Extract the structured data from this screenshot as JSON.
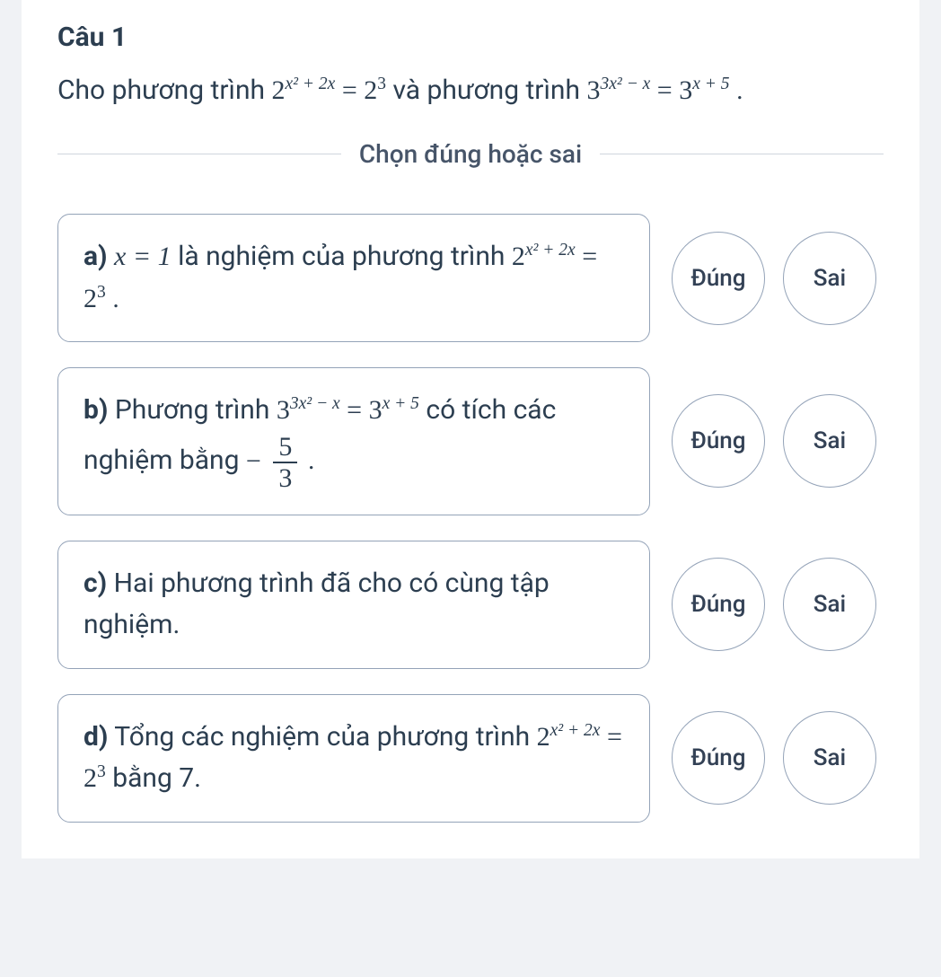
{
  "question": {
    "title": "Câu 1",
    "body_pre": "Cho phương trình ",
    "eq1_base": "2",
    "eq1_exp": "x² + 2x",
    "eq1_eq": " = ",
    "eq1_rhs_base": "2",
    "eq1_rhs_exp": "3",
    "body_mid": " và phương trình ",
    "eq2_base": "3",
    "eq2_exp": "3x² − x",
    "eq2_eq": " = ",
    "eq2_rhs_base": "3",
    "eq2_rhs_exp": "x + 5",
    "body_end": "."
  },
  "divider": "Chọn đúng hoặc sai",
  "buttons": {
    "true": "Đúng",
    "false": "Sai"
  },
  "options": {
    "a": {
      "label": "a)",
      "pre": " ",
      "expr_lhs": "x = 1",
      "mid": " là nghiệm của phương trình ",
      "eq_base": "2",
      "eq_exp": "x² + 2x",
      "eq_eq": " = ",
      "eq_rhs_base": "2",
      "eq_rhs_exp": "3",
      "end": "."
    },
    "b": {
      "label": "b)",
      "pre": " Phương trình ",
      "eq_base": "3",
      "eq_exp": "3x² − x",
      "eq_eq": " = ",
      "eq_rhs_base": "3",
      "eq_rhs_exp": "x + 5",
      "mid": " có tích các nghiệm bằng  ",
      "frac_sign": "−",
      "frac_num": "5",
      "frac_den": "3",
      "end": "."
    },
    "c": {
      "label": "c)",
      "text": " Hai phương trình đã cho có cùng tập nghiệm."
    },
    "d": {
      "label": "d)",
      "pre": " Tổng các nghiệm của phương trình ",
      "eq_base": "2",
      "eq_exp": "x² + 2x",
      "eq_eq": " = ",
      "eq_rhs_base": "2",
      "eq_rhs_exp": "3",
      "end": " bằng 7."
    }
  }
}
